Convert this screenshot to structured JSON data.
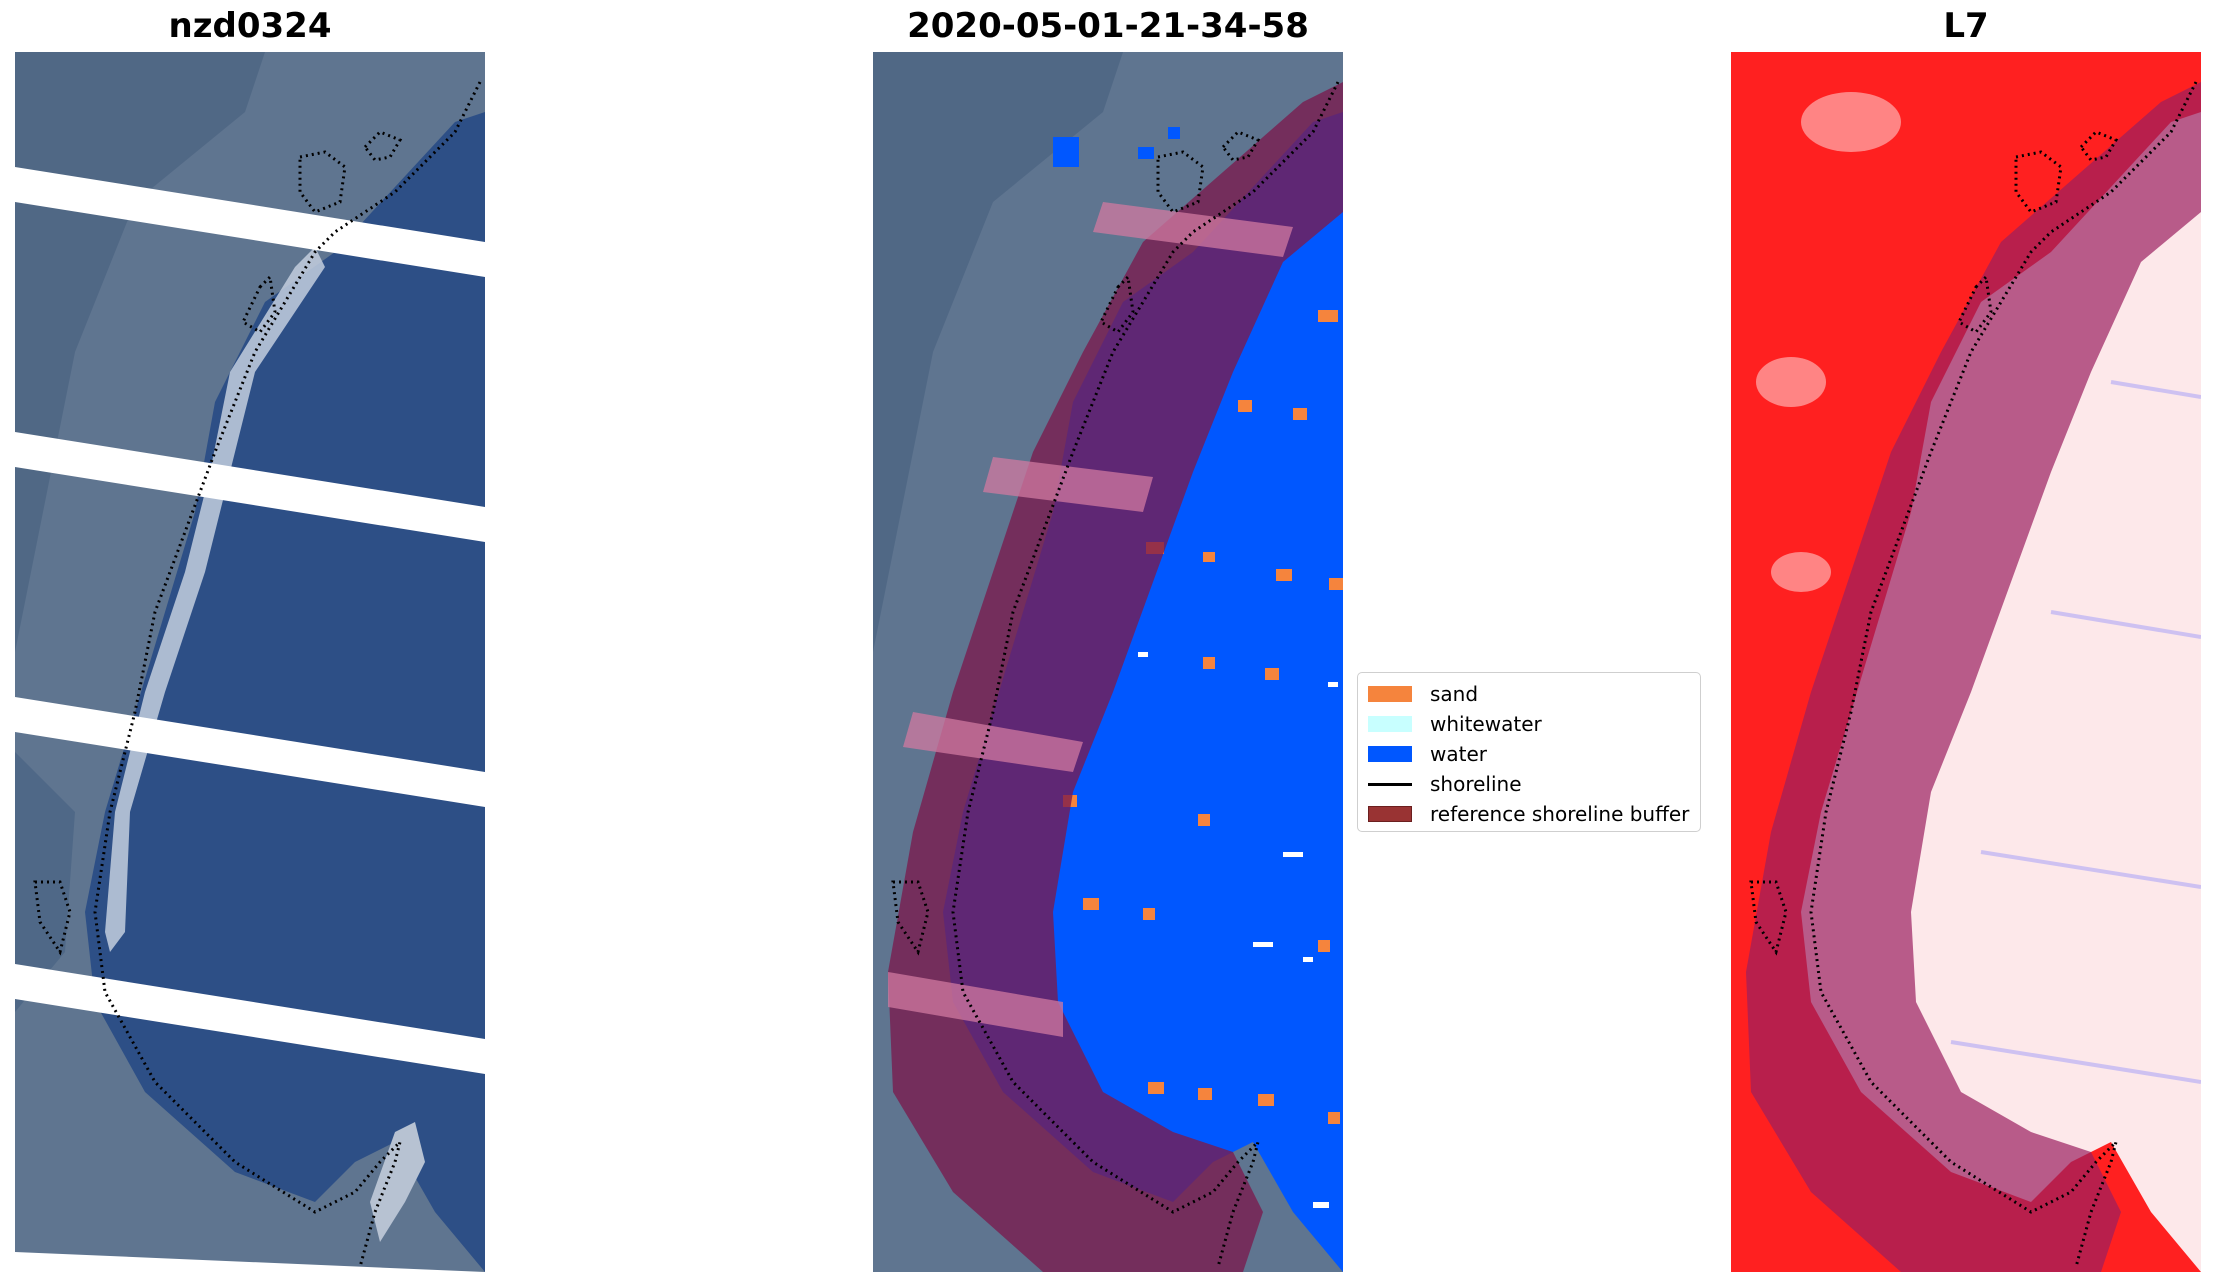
{
  "panels": [
    {
      "title": "nzd0324"
    },
    {
      "title": "2020-05-01-21-34-58"
    },
    {
      "title": "L7"
    }
  ],
  "legend": {
    "items": [
      {
        "label": "sand",
        "color": "#f5843d",
        "kind": "patch"
      },
      {
        "label": "whitewater",
        "color": "#c8ffff",
        "kind": "patch"
      },
      {
        "label": "water",
        "color": "#0057ff",
        "kind": "patch"
      },
      {
        "label": "shoreline",
        "color": "#000000",
        "kind": "line"
      },
      {
        "label": "reference shoreline buffer",
        "color": "#993333",
        "kind": "patch"
      }
    ]
  },
  "colors": {
    "imagery_water": "#2d4f86",
    "imagery_land": "#5f7590",
    "buffer": "#7a1a4d",
    "classified_water": "#0057ff",
    "index_positive": "#ff2020",
    "index_near_zero": "#fde8ea"
  }
}
